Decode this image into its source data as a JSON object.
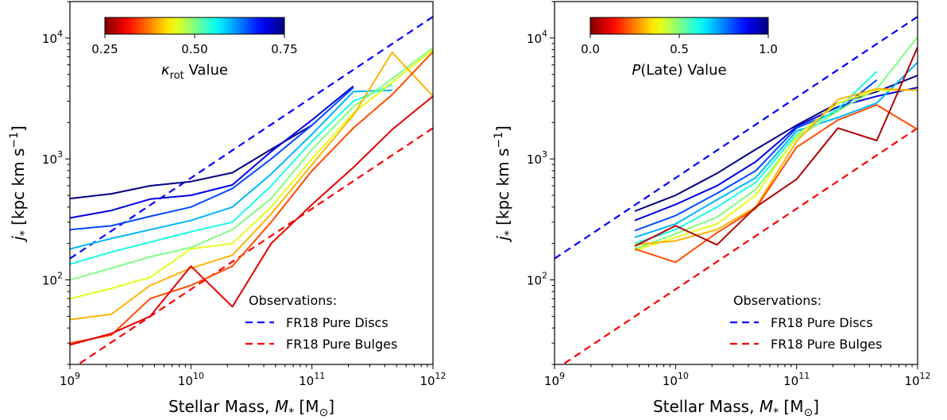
{
  "chart_data": [
    {
      "type": "line",
      "xscale": "log",
      "yscale": "log",
      "xlim": [
        1000000000.0,
        1000000000000.0
      ],
      "ylim": [
        20,
        20000
      ],
      "xlabel": "Stellar Mass, M* [M⊙]",
      "xlabel_parts": [
        "Stellar Mass, ",
        "M",
        "*",
        " [M",
        "⊙",
        "]"
      ],
      "ylabel_parts": [
        "j",
        "*",
        " [kpc km s",
        "−1",
        "]"
      ],
      "x_tick_labels": [
        "10^9",
        "10^10",
        "10^11",
        "10^12"
      ],
      "y_tick_labels": [
        "10^2",
        "10^3",
        "10^4"
      ],
      "colorbar": {
        "colormap": "jet_r",
        "range": [
          0.25,
          0.75
        ],
        "tick_labels": [
          "0.25",
          "0.50",
          "0.75"
        ],
        "tick_values": [
          0.25,
          0.5,
          0.75
        ],
        "label_parts": [
          "κ",
          "rot",
          " Value"
        ],
        "position": "top-left"
      },
      "legend": {
        "title": "Observations:",
        "position": "bottom-right",
        "entries": [
          {
            "label": "FR18 Pure Discs",
            "color": "#0000ff"
          },
          {
            "label": "FR18 Pure Bulges",
            "color": "#ff0000"
          }
        ]
      },
      "reference_lines": [
        {
          "legend_index": 0,
          "color": "#0000ff",
          "x": [
            1000000000.0,
            1000000000000.0
          ],
          "y": [
            150,
            15000
          ]
        },
        {
          "legend_index": 1,
          "color": "#ff0000",
          "x": [
            1000000000.0,
            1000000000000.0
          ],
          "y": [
            18,
            1800
          ]
        }
      ],
      "series": [
        {
          "c": 0.75,
          "x": [
            1000000000.0,
            2200000000.0,
            4600000000.0,
            10000000000.0,
            22000000000.0,
            46000000000.0,
            100000000000.0
          ],
          "y": [
            470,
            515,
            600,
            650,
            770,
            1200,
            1900
          ]
        },
        {
          "c": 0.7,
          "x": [
            1000000000.0,
            2200000000.0,
            4600000000.0,
            10000000000.0,
            22000000000.0,
            46000000000.0,
            100000000000.0,
            220000000000.0
          ],
          "y": [
            325,
            375,
            465,
            500,
            610,
            1150,
            2100,
            4000
          ]
        },
        {
          "c": 0.65,
          "x": [
            1000000000.0,
            2200000000.0,
            4600000000.0,
            10000000000.0,
            22000000000.0,
            46000000000.0,
            100000000000.0,
            220000000000.0
          ],
          "y": [
            260,
            280,
            335,
            400,
            570,
            1000,
            1900,
            3900
          ]
        },
        {
          "c": 0.6,
          "x": [
            1000000000.0,
            2200000000.0,
            4600000000.0,
            10000000000.0,
            22000000000.0,
            46000000000.0,
            100000000000.0,
            220000000000.0,
            460000000000.0
          ],
          "y": [
            180,
            220,
            260,
            310,
            400,
            750,
            1600,
            3600,
            3700
          ]
        },
        {
          "c": 0.55,
          "x": [
            1000000000.0,
            2200000000.0,
            4600000000.0,
            10000000000.0,
            22000000000.0,
            46000000000.0,
            100000000000.0,
            220000000000.0,
            460000000000.0
          ],
          "y": [
            135,
            170,
            205,
            250,
            300,
            600,
            1400,
            3000,
            4100
          ]
        },
        {
          "c": 0.5,
          "x": [
            1000000000.0,
            2200000000.0,
            4600000000.0,
            10000000000.0,
            22000000000.0,
            46000000000.0,
            100000000000.0,
            220000000000.0,
            460000000000.0,
            1000000000000.0
          ],
          "y": [
            100,
            125,
            155,
            185,
            260,
            470,
            1200,
            2700,
            4600,
            8300
          ]
        },
        {
          "c": 0.45,
          "x": [
            1000000000.0,
            2200000000.0,
            4600000000.0,
            10000000000.0,
            22000000000.0,
            46000000000.0,
            100000000000.0,
            220000000000.0,
            460000000000.0,
            1000000000000.0
          ],
          "y": [
            70,
            85,
            105,
            180,
            200,
            400,
            1000,
            2400,
            4300,
            8000
          ]
        },
        {
          "c": 0.4,
          "x": [
            1000000000.0,
            2200000000.0,
            4600000000.0,
            10000000000.0,
            22000000000.0,
            46000000000.0,
            100000000000.0,
            220000000000.0,
            460000000000.0,
            1000000000000.0
          ],
          "y": [
            47,
            52,
            90,
            125,
            160,
            350,
            900,
            2300,
            7600,
            3300
          ]
        },
        {
          "c": 0.35,
          "x": [
            1000000000.0,
            2200000000.0,
            4600000000.0,
            10000000000.0,
            22000000000.0,
            46000000000.0,
            100000000000.0,
            220000000000.0,
            460000000000.0,
            1000000000000.0
          ],
          "y": [
            30,
            35,
            70,
            90,
            130,
            300,
            800,
            1800,
            3400,
            7700
          ]
        },
        {
          "c": 0.3,
          "x": [
            1000000000.0,
            2200000000.0,
            4600000000.0,
            10000000000.0,
            22000000000.0,
            46000000000.0,
            100000000000.0,
            220000000000.0,
            460000000000.0,
            1000000000000.0
          ],
          "y": [
            29,
            36,
            50,
            130,
            60,
            200,
            420,
            850,
            1750,
            3300
          ]
        }
      ]
    },
    {
      "type": "line",
      "xscale": "log",
      "yscale": "log",
      "xlim": [
        1000000000.0,
        1000000000000.0
      ],
      "ylim": [
        20,
        20000
      ],
      "xlabel": "Stellar Mass, M* [M⊙]",
      "xlabel_parts": [
        "Stellar Mass, ",
        "M",
        "*",
        " [M",
        "⊙",
        "]"
      ],
      "ylabel_parts": [
        "j",
        "*",
        " [kpc km s",
        "−1",
        "]"
      ],
      "x_tick_labels": [
        "10^9",
        "10^10",
        "10^11",
        "10^12"
      ],
      "y_tick_labels": [
        "10^2",
        "10^3",
        "10^4"
      ],
      "colorbar": {
        "colormap": "jet_r",
        "range": [
          0.0,
          1.0
        ],
        "tick_labels": [
          "0.0",
          "0.5",
          "1.0"
        ],
        "tick_values": [
          0.0,
          0.5,
          1.0
        ],
        "label_parts": [
          "P",
          "(Late) Value"
        ],
        "position": "top-left"
      },
      "legend": {
        "title": "Observations:",
        "position": "bottom-right",
        "entries": [
          {
            "label": "FR18 Pure Discs",
            "color": "#0000ff"
          },
          {
            "label": "FR18 Pure Bulges",
            "color": "#ff0000"
          }
        ]
      },
      "reference_lines": [
        {
          "legend_index": 0,
          "color": "#0000ff",
          "x": [
            1000000000.0,
            1000000000000.0
          ],
          "y": [
            150,
            15000
          ]
        },
        {
          "legend_index": 1,
          "color": "#ff0000",
          "x": [
            1000000000.0,
            1000000000000.0
          ],
          "y": [
            18,
            1800
          ]
        }
      ],
      "series": [
        {
          "c": 1.0,
          "x": [
            4600000000.0,
            10000000000.0,
            22000000000.0,
            46000000000.0,
            100000000000.0,
            220000000000.0,
            460000000000.0,
            1000000000000.0
          ],
          "y": [
            370,
            500,
            760,
            1200,
            1900,
            2900,
            3600,
            4900
          ]
        },
        {
          "c": 0.9,
          "x": [
            4600000000.0,
            10000000000.0,
            22000000000.0,
            46000000000.0,
            100000000000.0,
            220000000000.0,
            460000000000.0,
            1000000000000.0
          ],
          "y": [
            310,
            420,
            600,
            950,
            1850,
            2700,
            3300,
            3900
          ]
        },
        {
          "c": 0.8,
          "x": [
            4600000000.0,
            10000000000.0,
            22000000000.0,
            46000000000.0,
            100000000000.0,
            220000000000.0,
            460000000000.0
          ],
          "y": [
            255,
            340,
            520,
            800,
            1800,
            2500,
            4500
          ]
        },
        {
          "c": 0.7,
          "x": [
            4600000000.0,
            10000000000.0,
            22000000000.0,
            46000000000.0,
            100000000000.0,
            220000000000.0,
            460000000000.0,
            1000000000000.0
          ],
          "y": [
            225,
            290,
            460,
            700,
            1700,
            2200,
            2900,
            6300
          ]
        },
        {
          "c": 0.6,
          "x": [
            4600000000.0,
            10000000000.0,
            22000000000.0,
            46000000000.0,
            100000000000.0,
            220000000000.0,
            460000000000.0
          ],
          "y": [
            200,
            260,
            400,
            640,
            1600,
            2600,
            5300
          ]
        },
        {
          "c": 0.5,
          "x": [
            4600000000.0,
            10000000000.0,
            22000000000.0,
            46000000000.0,
            100000000000.0,
            220000000000.0,
            460000000000.0,
            1000000000000.0
          ],
          "y": [
            180,
            240,
            330,
            560,
            1500,
            2500,
            3800,
            10200
          ]
        },
        {
          "c": 0.4,
          "x": [
            4600000000.0,
            10000000000.0,
            22000000000.0,
            46000000000.0,
            100000000000.0,
            220000000000.0,
            460000000000.0,
            1000000000000.0
          ],
          "y": [
            175,
            225,
            290,
            500,
            1550,
            2900,
            3700,
            3700
          ]
        },
        {
          "c": 0.3,
          "x": [
            4600000000.0,
            10000000000.0,
            22000000000.0,
            46000000000.0,
            100000000000.0,
            220000000000.0,
            460000000000.0,
            1000000000000.0
          ],
          "y": [
            195,
            210,
            260,
            400,
            1400,
            3100,
            3800,
            3700
          ]
        },
        {
          "c": 0.2,
          "x": [
            4600000000.0,
            10000000000.0,
            22000000000.0,
            46000000000.0,
            100000000000.0,
            220000000000.0,
            460000000000.0,
            1000000000000.0
          ],
          "y": [
            180,
            140,
            245,
            390,
            1250,
            2100,
            2800,
            1750
          ]
        },
        {
          "c": 0.05,
          "x": [
            4600000000.0,
            10000000000.0,
            22000000000.0,
            46000000000.0,
            100000000000.0,
            220000000000.0,
            460000000000.0,
            1000000000000.0
          ],
          "y": [
            190,
            280,
            195,
            400,
            680,
            1800,
            1420,
            8400
          ]
        }
      ]
    }
  ]
}
